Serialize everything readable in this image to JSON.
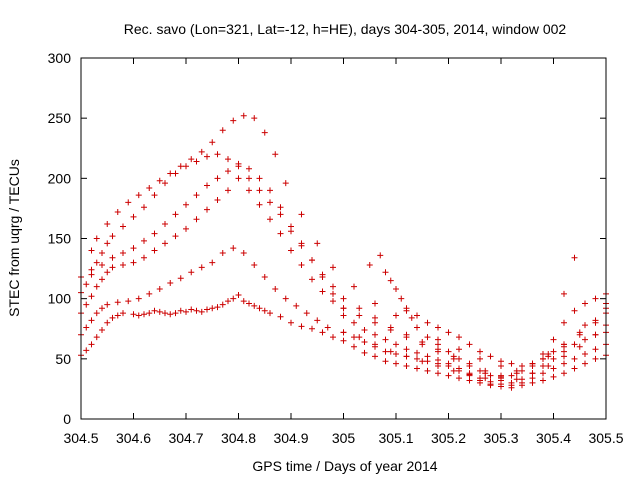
{
  "chart_data": {
    "type": "scatter",
    "title": "Rec. savo (Lon=321, Lat=-12, h=HE), days 304-305, 2014, window 002",
    "xlabel": "GPS time / Days of year 2014",
    "ylabel": "STEC from uqrg / TECUs",
    "xlim": [
      304.5,
      305.5
    ],
    "ylim": [
      0,
      300
    ],
    "xticks": [
      304.5,
      304.6,
      304.7,
      304.8,
      304.9,
      305,
      305.1,
      305.2,
      305.3,
      305.4,
      305.5
    ],
    "xtick_labels": [
      "304.5",
      "304.6",
      "304.7",
      "304.8",
      "304.9",
      "305",
      "305.1",
      "305.2",
      "305.3",
      "305.4",
      "305.5"
    ],
    "yticks": [
      0,
      50,
      100,
      150,
      200,
      250,
      300
    ],
    "ytick_labels": [
      "0",
      "50",
      "100",
      "150",
      "200",
      "250",
      "300"
    ],
    "grid": false,
    "legend": "none",
    "marker": "plus",
    "color": "#cc0000",
    "series": [
      {
        "x": [
          304.5,
          304.51,
          304.52,
          304.53,
          304.54,
          304.55,
          304.56,
          304.57,
          304.58,
          304.6,
          304.61,
          304.62,
          304.63,
          304.64,
          304.65,
          304.66,
          304.67,
          304.68,
          304.69,
          304.7,
          304.71,
          304.72,
          304.73,
          304.74,
          304.75,
          304.76,
          304.77,
          304.78,
          304.79,
          304.8,
          304.81,
          304.82,
          304.83,
          304.84,
          304.85,
          304.86,
          304.88,
          304.9,
          304.92,
          304.94,
          304.96,
          304.98,
          305.0,
          305.02,
          305.04,
          305.06,
          305.08,
          305.1,
          305.12,
          305.14,
          305.16,
          305.18,
          305.2,
          305.22,
          305.24,
          305.26,
          305.28,
          305.3,
          305.32,
          305.34,
          305.36,
          305.38,
          305.4,
          305.42,
          305.44,
          305.46,
          305.48,
          305.5
        ],
        "y": [
          53,
          57,
          62,
          68,
          74,
          80,
          84,
          86,
          88,
          87,
          86,
          87,
          88,
          90,
          89,
          88,
          87,
          88,
          90,
          89,
          91,
          90,
          89,
          91,
          92,
          93,
          95,
          98,
          100,
          103,
          98,
          96,
          94,
          92,
          90,
          88,
          85,
          80,
          77,
          75,
          72,
          68,
          65,
          60,
          55,
          52,
          48,
          46,
          44,
          42,
          40,
          38,
          36,
          34,
          32,
          30,
          28,
          27,
          26,
          28,
          30,
          32,
          35,
          38,
          42,
          46,
          50,
          53
        ]
      },
      {
        "x": [
          304.5,
          304.51,
          304.52,
          304.53,
          304.54,
          304.55,
          304.57,
          304.59,
          304.61,
          304.63,
          304.65,
          304.67,
          304.69,
          304.71,
          304.73,
          304.75,
          304.77,
          304.79,
          304.81,
          304.83,
          304.85,
          304.87,
          304.89,
          304.91,
          304.93,
          304.95,
          304.97,
          305.0,
          305.03,
          305.06,
          305.09,
          305.12,
          305.15,
          305.18,
          305.21,
          305.24,
          305.27,
          305.3,
          305.33,
          305.36,
          305.39,
          305.42,
          305.45,
          305.48,
          305.5
        ],
        "y": [
          70,
          76,
          82,
          88,
          92,
          95,
          97,
          98,
          100,
          104,
          108,
          113,
          117,
          122,
          126,
          130,
          138,
          142,
          138,
          128,
          118,
          108,
          100,
          94,
          88,
          82,
          76,
          72,
          68,
          62,
          56,
          52,
          48,
          44,
          40,
          37,
          34,
          32,
          33,
          38,
          44,
          52,
          60,
          70,
          78
        ]
      },
      {
        "x": [
          304.5,
          304.51,
          304.52,
          304.53,
          304.54,
          304.55,
          304.56,
          304.58,
          304.6,
          304.62,
          304.64,
          304.66,
          304.68,
          304.7,
          304.72,
          304.74,
          304.76,
          304.78,
          304.8,
          304.82,
          304.84,
          304.86,
          304.88,
          304.9,
          304.92,
          304.94,
          304.96,
          304.98,
          305.0,
          305.03,
          305.06,
          305.09,
          305.12,
          305.15,
          305.18,
          305.21,
          305.24,
          305.27,
          305.3,
          305.33,
          305.36,
          305.39,
          305.42,
          305.45,
          305.48,
          305.5
        ],
        "y": [
          88,
          95,
          102,
          110,
          116,
          122,
          126,
          128,
          130,
          134,
          140,
          146,
          152,
          158,
          166,
          174,
          182,
          190,
          200,
          190,
          178,
          166,
          154,
          140,
          128,
          116,
          106,
          98,
          92,
          86,
          80,
          74,
          68,
          62,
          56,
          50,
          44,
          38,
          35,
          38,
          44,
          52,
          60,
          70,
          80,
          88
        ]
      },
      {
        "x": [
          304.5,
          304.51,
          304.52,
          304.53,
          304.54,
          304.55,
          304.56,
          304.58,
          304.6,
          304.62,
          304.64,
          304.66,
          304.68,
          304.7,
          304.72,
          304.74,
          304.76,
          304.78,
          304.8,
          304.82,
          304.84,
          304.86,
          304.88,
          304.9,
          304.92,
          304.94,
          304.96,
          304.98,
          305.0,
          305.03,
          305.06,
          305.09,
          305.12,
          305.15,
          305.18,
          305.21,
          305.24,
          305.27,
          305.3,
          305.33,
          305.36,
          305.39,
          305.42,
          305.45,
          305.48,
          305.5
        ],
        "y": [
          105,
          112,
          120,
          130,
          138,
          146,
          152,
          160,
          168,
          176,
          186,
          196,
          204,
          210,
          214,
          218,
          220,
          216,
          210,
          200,
          190,
          180,
          170,
          156,
          144,
          132,
          120,
          110,
          100,
          92,
          84,
          76,
          70,
          64,
          58,
          52,
          46,
          40,
          36,
          40,
          46,
          54,
          62,
          72,
          82,
          92
        ]
      },
      {
        "x": [
          304.52,
          304.53,
          304.55,
          304.57,
          304.59,
          304.61,
          304.63,
          304.65,
          304.67,
          304.69,
          304.71,
          304.73,
          304.75,
          304.77,
          304.79,
          304.81,
          304.83,
          304.85,
          304.87,
          304.89,
          304.92,
          304.95,
          304.98,
          305.02,
          305.06,
          305.1,
          305.14,
          305.18,
          305.22,
          305.26,
          305.3,
          305.34,
          305.38,
          305.42,
          305.46,
          305.5
        ],
        "y": [
          140,
          150,
          162,
          172,
          180,
          186,
          192,
          198,
          204,
          210,
          216,
          222,
          230,
          240,
          248,
          252,
          250,
          238,
          220,
          196,
          170,
          146,
          126,
          110,
          96,
          86,
          76,
          66,
          58,
          50,
          44,
          44,
          50,
          62,
          78,
          96
        ]
      },
      {
        "x": [
          304.5,
          304.52,
          304.54,
          304.56,
          304.58,
          304.6,
          304.62,
          304.64,
          304.66,
          304.68,
          304.7,
          304.72,
          304.74,
          304.76,
          304.78,
          304.8,
          304.82,
          304.84,
          304.86,
          304.88,
          304.9,
          304.92,
          304.94,
          304.96,
          304.98,
          305.0
        ],
        "y": [
          118,
          124,
          128,
          134,
          138,
          142,
          148,
          154,
          162,
          170,
          178,
          186,
          194,
          200,
          206,
          212,
          208,
          200,
          190,
          176,
          160,
          146,
          132,
          118,
          104,
          92
        ]
      },
      {
        "x": [
          305.05,
          305.07,
          305.08,
          305.09,
          305.1,
          305.11,
          305.12,
          305.13,
          305.14,
          305.16,
          305.18,
          305.2,
          305.22,
          305.24,
          305.26,
          305.28,
          305.3,
          305.32,
          305.34,
          305.36,
          305.38,
          305.4,
          305.42,
          305.44,
          305.46,
          305.48,
          305.5
        ],
        "y": [
          128,
          136,
          122,
          115,
          108,
          100,
          92,
          84,
          76,
          68,
          62,
          56,
          50,
          44,
          40,
          36,
          34,
          36,
          40,
          46,
          54,
          66,
          80,
          90,
          96,
          100,
          104
        ]
      },
      {
        "x": [
          305.0,
          305.02,
          305.04,
          305.06,
          305.08,
          305.1,
          305.12,
          305.14,
          305.16,
          305.18,
          305.2,
          305.22,
          305.24,
          305.26,
          305.28,
          305.3,
          305.32,
          305.34,
          305.36,
          305.38,
          305.4,
          305.42,
          305.44,
          305.46,
          305.48,
          305.5
        ],
        "y": [
          86,
          80,
          74,
          70,
          66,
          62,
          58,
          55,
          52,
          49,
          46,
          42,
          38,
          34,
          31,
          29,
          30,
          33,
          38,
          44,
          50,
          56,
          62,
          66,
          70,
          72
        ]
      },
      {
        "x": [
          305.0,
          305.02,
          305.04,
          305.06,
          305.08,
          305.1,
          305.12,
          305.14,
          305.16,
          305.18,
          305.2,
          305.22,
          305.24,
          305.26,
          305.28,
          305.3,
          305.32,
          305.34,
          305.36,
          305.38,
          305.4,
          305.42,
          305.44,
          305.46,
          305.48,
          305.5
        ],
        "y": [
          72,
          68,
          64,
          60,
          56,
          54,
          52,
          50,
          48,
          46,
          44,
          40,
          36,
          32,
          29,
          27,
          28,
          30,
          34,
          38,
          42,
          46,
          50,
          54,
          58,
          62
        ]
      },
      {
        "x": [
          305.12,
          305.14,
          305.16,
          305.18,
          305.2,
          305.22,
          305.24,
          305.26,
          305.28,
          305.3,
          305.32,
          305.34,
          305.36,
          305.38,
          305.4,
          305.42,
          305.44
        ],
        "y": [
          90,
          86,
          80,
          76,
          72,
          68,
          62,
          56,
          52,
          48,
          46,
          44,
          46,
          50,
          56,
          104,
          134
        ]
      }
    ]
  }
}
